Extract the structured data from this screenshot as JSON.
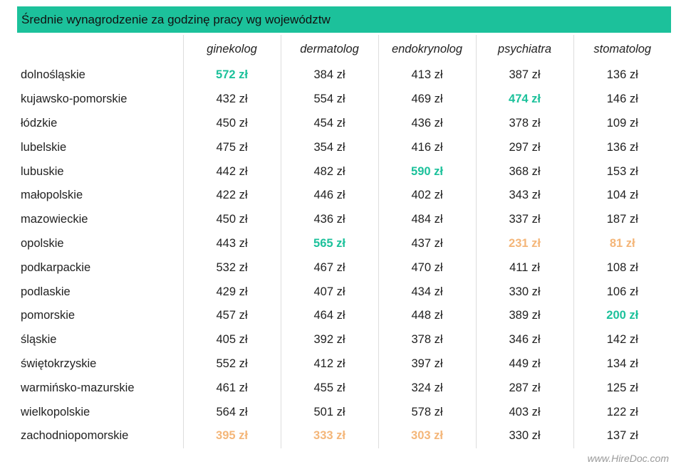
{
  "chart_data": {
    "type": "table",
    "title": "Średnie wynagrodzenie za godzinę pracy wg województw",
    "unit": "zł",
    "columns": [
      "ginekolog",
      "dermatolog",
      "endokrynolog",
      "psychiatra",
      "stomatolog"
    ],
    "rows": [
      {
        "region": "dolnośląskie",
        "values": [
          572,
          384,
          413,
          387,
          136
        ],
        "highlight": [
          "max",
          "",
          "",
          "",
          ""
        ]
      },
      {
        "region": "kujawsko-pomorskie",
        "values": [
          432,
          554,
          469,
          474,
          146
        ],
        "highlight": [
          "",
          "",
          "",
          "max",
          ""
        ]
      },
      {
        "region": "łódzkie",
        "values": [
          450,
          454,
          436,
          378,
          109
        ],
        "highlight": [
          "",
          "",
          "",
          "",
          ""
        ]
      },
      {
        "region": "lubelskie",
        "values": [
          475,
          354,
          416,
          297,
          136
        ],
        "highlight": [
          "",
          "",
          "",
          "",
          ""
        ]
      },
      {
        "region": "lubuskie",
        "values": [
          442,
          482,
          590,
          368,
          153
        ],
        "highlight": [
          "",
          "",
          "max",
          "",
          ""
        ]
      },
      {
        "region": "małopolskie",
        "values": [
          422,
          446,
          402,
          343,
          104
        ],
        "highlight": [
          "",
          "",
          "",
          "",
          ""
        ]
      },
      {
        "region": "mazowieckie",
        "values": [
          450,
          436,
          484,
          337,
          187
        ],
        "highlight": [
          "",
          "",
          "",
          "",
          ""
        ]
      },
      {
        "region": "opolskie",
        "values": [
          443,
          565,
          437,
          231,
          81
        ],
        "highlight": [
          "",
          "max",
          "",
          "min",
          "min"
        ]
      },
      {
        "region": "podkarpackie",
        "values": [
          532,
          467,
          470,
          411,
          108
        ],
        "highlight": [
          "",
          "",
          "",
          "",
          ""
        ]
      },
      {
        "region": "podlaskie",
        "values": [
          429,
          407,
          434,
          330,
          106
        ],
        "highlight": [
          "",
          "",
          "",
          "",
          ""
        ]
      },
      {
        "region": "pomorskie",
        "values": [
          457,
          464,
          448,
          389,
          200
        ],
        "highlight": [
          "",
          "",
          "",
          "",
          "max"
        ]
      },
      {
        "region": "śląskie",
        "values": [
          405,
          392,
          378,
          346,
          142
        ],
        "highlight": [
          "",
          "",
          "",
          "",
          ""
        ]
      },
      {
        "region": "świętokrzyskie",
        "values": [
          552,
          412,
          397,
          449,
          134
        ],
        "highlight": [
          "",
          "",
          "",
          "",
          ""
        ]
      },
      {
        "region": "warmińsko-mazurskie",
        "values": [
          461,
          455,
          324,
          287,
          125
        ],
        "highlight": [
          "",
          "",
          "",
          "",
          ""
        ]
      },
      {
        "region": "wielkopolskie",
        "values": [
          564,
          501,
          578,
          403,
          122
        ],
        "highlight": [
          "",
          "",
          "",
          "",
          ""
        ]
      },
      {
        "region": "zachodniopomorskie",
        "values": [
          395,
          333,
          303,
          330,
          137
        ],
        "highlight": [
          "min",
          "min",
          "min",
          "",
          ""
        ]
      }
    ],
    "colors": {
      "max": "#1cc19b",
      "min": "#f4b679",
      "title_bar": "#1cc19b"
    }
  },
  "footer": {
    "source": "www.HireDoc.com"
  }
}
